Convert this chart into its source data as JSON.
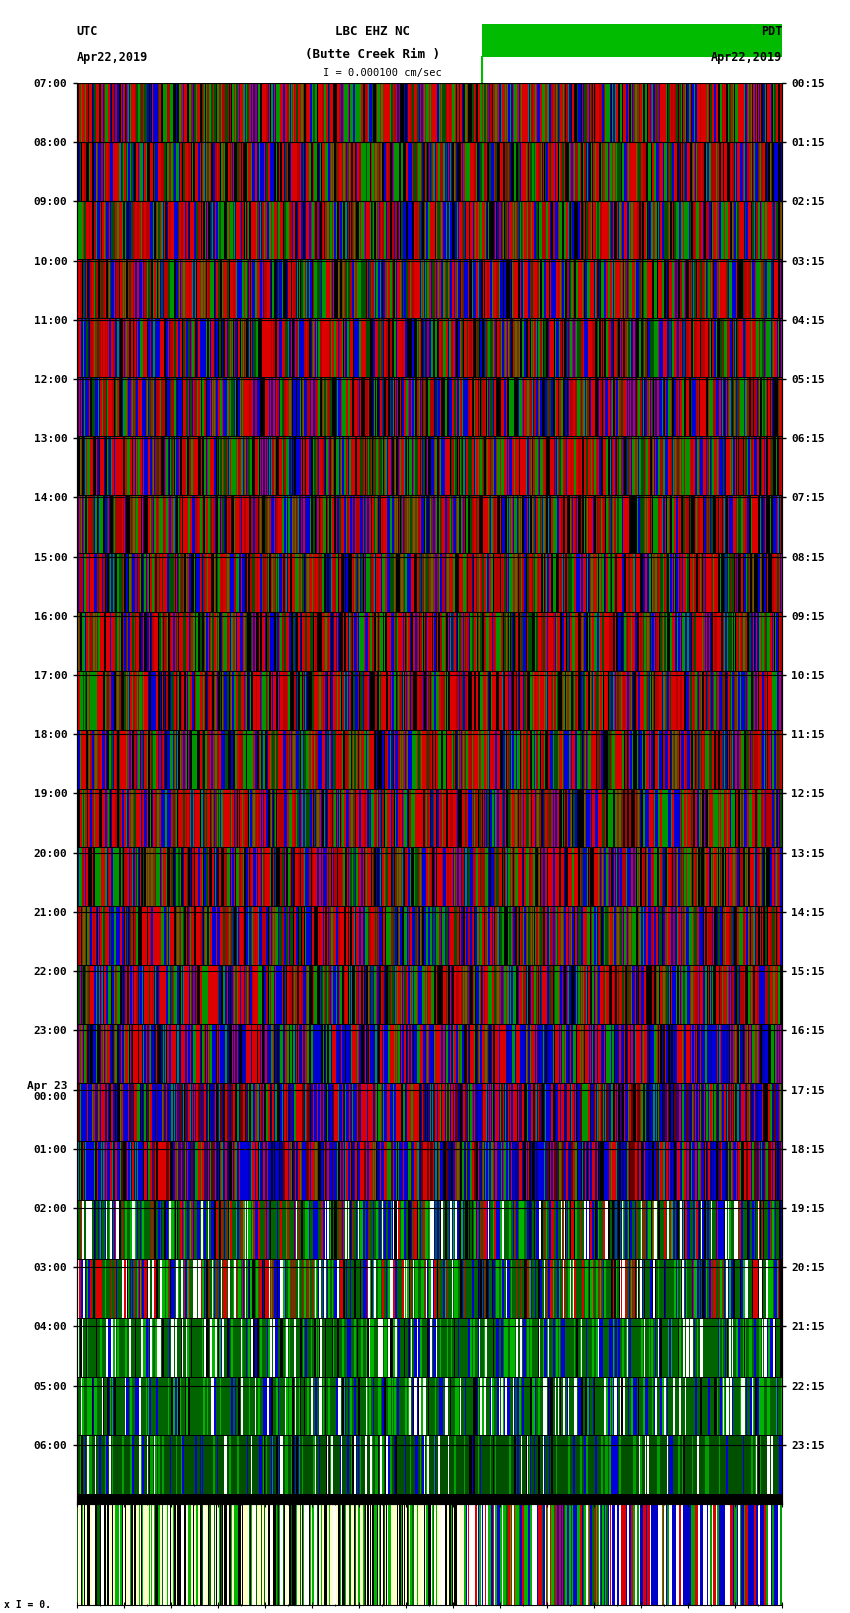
{
  "title_line1": "LBC EHZ NC",
  "title_line2": "(Butte Creek Rim )",
  "scale_label": "= 0.000100 cm/sec",
  "utc_label": "UTC",
  "utc_date": "Apr22,2019",
  "pdt_label": "PDT",
  "pdt_date": "Apr22,2019",
  "left_times_utc": [
    "07:00",
    "08:00",
    "09:00",
    "10:00",
    "11:00",
    "12:00",
    "13:00",
    "14:00",
    "15:00",
    "16:00",
    "17:00",
    "18:00",
    "19:00",
    "20:00",
    "21:00",
    "22:00",
    "23:00",
    "Apr 23\n00:00",
    "01:00",
    "02:00",
    "03:00",
    "04:00",
    "05:00",
    "06:00"
  ],
  "right_times_pdt": [
    "00:15",
    "01:15",
    "02:15",
    "03:15",
    "04:15",
    "05:15",
    "06:15",
    "07:15",
    "08:15",
    "09:15",
    "10:15",
    "11:15",
    "12:15",
    "13:15",
    "14:15",
    "15:15",
    "16:15",
    "17:15",
    "18:15",
    "19:15",
    "20:15",
    "21:15",
    "22:15",
    "23:15"
  ],
  "n_rows": 24,
  "figsize": [
    8.5,
    16.13
  ],
  "dpi": 100
}
